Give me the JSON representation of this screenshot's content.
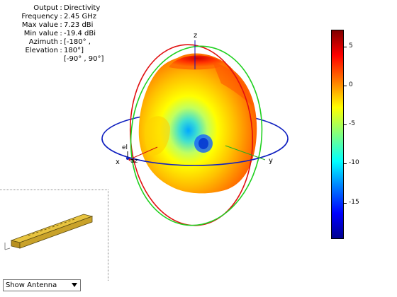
{
  "info": {
    "rows": [
      {
        "key": "Output",
        "value": "Directivity"
      },
      {
        "key": "Frequency",
        "value": "2.45 GHz"
      },
      {
        "key": "Max value",
        "value": "7.23 dBi"
      },
      {
        "key": "Min value",
        "value": "-19.4 dBi"
      },
      {
        "key": "Azimuth",
        "value": "[-180° ,"
      },
      {
        "key": "Elevation",
        "value": "180°]"
      }
    ],
    "continuation": "[-90° , 90°]"
  },
  "axes": {
    "x": "x",
    "y": "y",
    "z": "z",
    "el": "el",
    "az": "az"
  },
  "colorbar": {
    "ticks": [
      "5",
      "0",
      "-5",
      "-10",
      "-15"
    ],
    "range": [
      -19.4,
      7.23
    ],
    "colors": [
      "#800000",
      "#ff0000",
      "#ff8000",
      "#ffff00",
      "#80ff80",
      "#00ffff",
      "#0080ff",
      "#0000ff",
      "#00008f"
    ]
  },
  "antenna_toggle": {
    "selected": "Show Antenna"
  }
}
